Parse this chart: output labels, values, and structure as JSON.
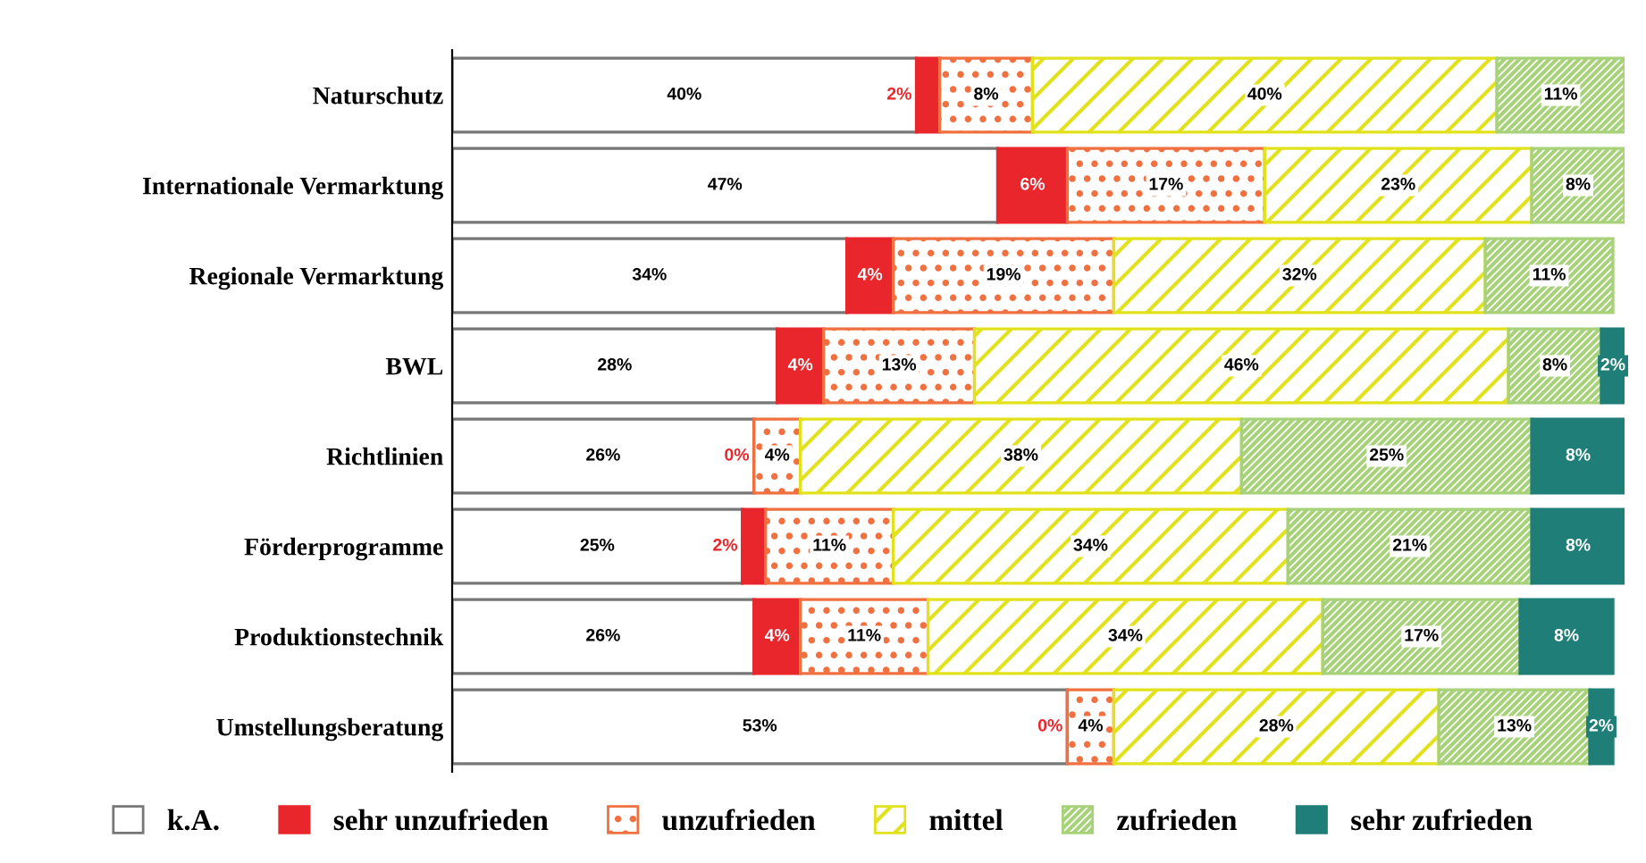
{
  "chart_data": {
    "type": "bar",
    "orientation": "horizontal",
    "stacked": true,
    "legend": "bottom",
    "grid": false,
    "categories": [
      "Naturschutz",
      "Internationale Vermarktung",
      "Regionale Vermarktung",
      "BWL",
      "Richtlinien",
      "Förderprogramme",
      "Produktionstechnik",
      "Umstellungsberatung"
    ],
    "series": [
      {
        "name": "k.A.",
        "color": "#ffffff",
        "values": [
          40,
          47,
          34,
          28,
          26,
          25,
          26,
          53
        ],
        "value_labels": [
          "40%",
          "47%",
          "34%",
          "28%",
          "26%",
          "25%",
          "26%",
          "53%"
        ]
      },
      {
        "name": "sehr unzufrieden",
        "color": "#e8262b",
        "values": [
          2,
          6,
          4,
          4,
          0,
          2,
          4,
          0
        ],
        "value_labels": [
          "2%",
          "6%",
          "4%",
          "4%",
          "0%",
          "2%",
          "4%",
          "0%"
        ]
      },
      {
        "name": "unzufrieden",
        "color": "#f07040",
        "values": [
          8,
          17,
          19,
          13,
          4,
          11,
          11,
          4
        ],
        "value_labels": [
          "8%",
          "17%",
          "19%",
          "13%",
          "4%",
          "11%",
          "11%",
          "4%"
        ]
      },
      {
        "name": "mittel",
        "color": "#e2e21c",
        "values": [
          40,
          23,
          32,
          46,
          38,
          34,
          34,
          28
        ],
        "value_labels": [
          "40%",
          "23%",
          "32%",
          "46%",
          "38%",
          "34%",
          "34%",
          "28%"
        ]
      },
      {
        "name": "zufrieden",
        "color": "#a8d27a",
        "values": [
          11,
          8,
          11,
          8,
          25,
          21,
          17,
          13
        ],
        "value_labels": [
          "11%",
          "8%",
          "11%",
          "8%",
          "25%",
          "21%",
          "17%",
          "13%"
        ]
      },
      {
        "name": "sehr zufrieden",
        "color": "#1f7f78",
        "values": [
          null,
          null,
          null,
          2,
          8,
          8,
          8,
          2
        ],
        "value_labels": [
          null,
          null,
          null,
          "2%",
          "8%",
          "8%",
          "8%",
          "2%"
        ]
      }
    ]
  }
}
